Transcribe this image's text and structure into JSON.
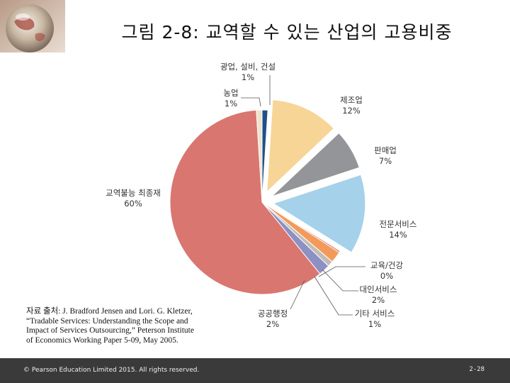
{
  "header": {
    "title": "그림 2-8: 교역할 수 있는 산업의 고용비중",
    "logo_icon": "globe-icon"
  },
  "chart_data": {
    "type": "pie",
    "title": "그림 2-8: 교역할 수 있는 산업의 고용비중",
    "slices": [
      {
        "label": "교역불능 최종재",
        "value_text": "60%",
        "value": 60,
        "color": "#d97670",
        "exploded": false
      },
      {
        "label": "광업, 설비, 건설",
        "value_text": "1%",
        "value": 1,
        "color": "#1f4f8b",
        "exploded": false
      },
      {
        "label": "제조업",
        "value_text": "12%",
        "value": 12,
        "color": "#f7d597",
        "exploded": true
      },
      {
        "label": "판매업",
        "value_text": "7%",
        "value": 7,
        "color": "#939598",
        "exploded": true
      },
      {
        "label": "전문서비스",
        "value_text": "14%",
        "value": 14,
        "color": "#a6d1ea",
        "exploded": true
      },
      {
        "label": "교육/건강",
        "value_text": "0%",
        "value": 0.3,
        "color": "#d97670",
        "exploded": false
      },
      {
        "label": "대인서비스",
        "value_text": "2%",
        "value": 2,
        "color": "#f39a5b",
        "exploded": false
      },
      {
        "label": "기타 서비스",
        "value_text": "1%",
        "value": 1,
        "color": "#c2bcb6",
        "exploded": false
      },
      {
        "label": "공공행정",
        "value_text": "2%",
        "value": 2,
        "color": "#8d90c2",
        "exploded": false
      },
      {
        "label": "농업",
        "value_text": "1%",
        "value": 1,
        "color": "#efe3cd",
        "exploded": false
      }
    ]
  },
  "source": {
    "line1": "자료 출처: J. Bradford Jensen and Lori. G. Kletzer,",
    "line2": "“Tradable Services: Understanding the Scope and",
    "line3": "Impact of Services Outsourcing,” Peterson Institute",
    "line4": "of Economics Working Paper 5-09, May 2005."
  },
  "footer": {
    "copyright": "© Pearson Education Limited 2015. All rights reserved.",
    "page": "2-28"
  },
  "colors": {
    "footer_bg": "#3a3a3a",
    "leader_line": "#555555"
  }
}
